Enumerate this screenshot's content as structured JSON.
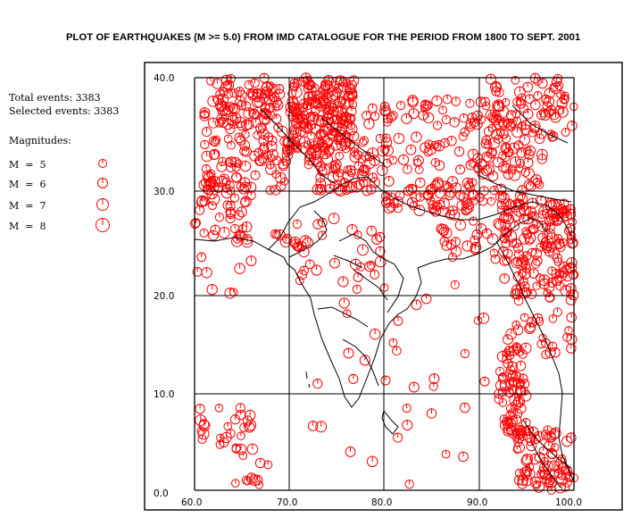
{
  "title": "PLOT  OF  EARTHQUAKES (M >= 5.0) FROM  IMD  CATALOGUE  FOR THE PERIOD  FROM  1800  TO  SEPT. 2001",
  "stats": {
    "total": "Total   events: 3383",
    "selected": "Selected events: 3383"
  },
  "legend": {
    "title": "Magnitudes:",
    "items": [
      {
        "label": "M  =  5",
        "magnitude": 5
      },
      {
        "label": "M  =  6",
        "magnitude": 6
      },
      {
        "label": "M  =  7",
        "magnitude": 7
      },
      {
        "label": "M  =  8",
        "magnitude": 8
      }
    ]
  },
  "colors": {
    "event": "#ff0000",
    "grid": "#000000",
    "border": "#000000"
  },
  "map": {
    "lon_range": [
      60,
      100
    ],
    "lat_range": [
      0,
      40
    ],
    "x_ticks": [
      "60.0",
      "70.0",
      "80.0",
      "90.0",
      "100.0"
    ],
    "y_ticks": [
      "0.0",
      "10.0",
      "20.0",
      "30.0",
      "40.0"
    ]
  },
  "clusters": [
    {
      "lon": [
        61,
        69
      ],
      "lat": [
        35,
        40
      ],
      "n": 90
    },
    {
      "lon": [
        61,
        70
      ],
      "lat": [
        29,
        35
      ],
      "n": 80
    },
    {
      "lon": [
        60,
        66
      ],
      "lat": [
        24,
        30
      ],
      "n": 45
    },
    {
      "lon": [
        70,
        77
      ],
      "lat": [
        33,
        40
      ],
      "n": 170
    },
    {
      "lon": [
        72,
        79
      ],
      "lat": [
        29,
        34
      ],
      "n": 75
    },
    {
      "lon": [
        78,
        95
      ],
      "lat": [
        31,
        38
      ],
      "n": 110
    },
    {
      "lon": [
        80,
        90
      ],
      "lat": [
        27,
        30
      ],
      "n": 60
    },
    {
      "lon": [
        91,
        100
      ],
      "lat": [
        34,
        40
      ],
      "n": 70
    },
    {
      "lon": [
        90,
        97
      ],
      "lat": [
        28,
        33
      ],
      "n": 45
    },
    {
      "lon": [
        92,
        100
      ],
      "lat": [
        20,
        28
      ],
      "n": 140
    },
    {
      "lon": [
        93,
        100
      ],
      "lat": [
        13,
        20
      ],
      "n": 45
    },
    {
      "lon": [
        92,
        95
      ],
      "lat": [
        5,
        14
      ],
      "n": 70
    },
    {
      "lon": [
        94,
        100
      ],
      "lat": [
        0,
        6
      ],
      "n": 75
    },
    {
      "lon": [
        86,
        94
      ],
      "lat": [
        22,
        27
      ],
      "n": 30
    },
    {
      "lon": [
        70,
        80
      ],
      "lat": [
        20,
        27
      ],
      "n": 28
    },
    {
      "lon": [
        60,
        66
      ],
      "lat": [
        4,
        8
      ],
      "n": 25
    },
    {
      "lon": [
        64,
        68
      ],
      "lat": [
        0,
        4
      ],
      "n": 12
    },
    {
      "lon": [
        68,
        72
      ],
      "lat": [
        23,
        25
      ],
      "n": 12
    },
    {
      "lon": [
        60,
        66
      ],
      "lat": [
        19,
        23
      ],
      "n": 8
    },
    {
      "lon": [
        72,
        91
      ],
      "lat": [
        0,
        20
      ],
      "n": 35
    }
  ]
}
